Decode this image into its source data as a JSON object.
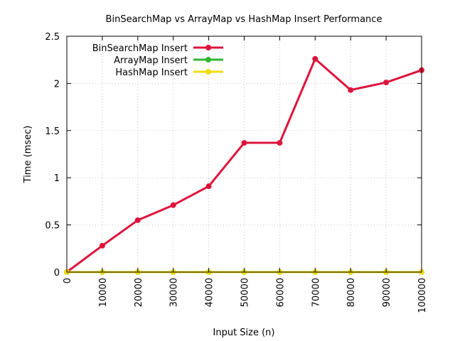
{
  "chart_data": {
    "type": "line",
    "title": "BinSearchMap vs ArrayMap vs HashMap Insert Performance",
    "xlabel": "Input Size (n)",
    "ylabel": "Time (msec)",
    "xlim": [
      0,
      100000
    ],
    "ylim": [
      0,
      2.5
    ],
    "xticks": [
      0,
      10000,
      20000,
      30000,
      40000,
      50000,
      60000,
      70000,
      80000,
      90000,
      100000
    ],
    "yticks": [
      0,
      0.5,
      1,
      1.5,
      2,
      2.5
    ],
    "ytick_labels": [
      "0",
      "0.5",
      "1",
      "1.5",
      "2",
      "2.5"
    ],
    "grid": true,
    "legend_position": "top-left",
    "x": [
      0,
      10000,
      20000,
      30000,
      40000,
      50000,
      60000,
      70000,
      80000,
      90000,
      100000
    ],
    "series": [
      {
        "name": "BinSearchMap Insert",
        "color": "#dc143c",
        "values": [
          0.0,
          0.28,
          0.55,
          0.71,
          0.91,
          1.37,
          1.37,
          2.26,
          1.93,
          2.01,
          2.14
        ]
      },
      {
        "name": "ArrayMap Insert",
        "color": "#32b432",
        "values": [
          0,
          0,
          0,
          0,
          0,
          0,
          0,
          0,
          0,
          0,
          0
        ]
      },
      {
        "name": "HashMap Insert",
        "color": "#f0dc14",
        "values": [
          0,
          0,
          0,
          0,
          0,
          0,
          0,
          0,
          0,
          0,
          0
        ]
      }
    ]
  }
}
